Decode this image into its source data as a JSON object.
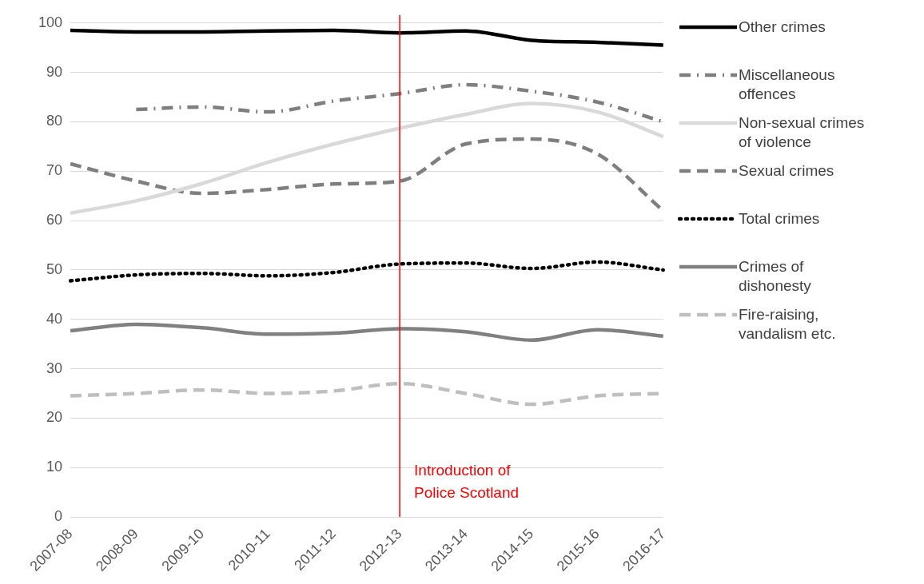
{
  "chart_data": {
    "type": "line",
    "categories": [
      "2007-08",
      "2008-09",
      "2009-10",
      "2010-11",
      "2011-12",
      "2012-13",
      "2013-14",
      "2014-15",
      "2015-16",
      "2016-17"
    ],
    "series": [
      {
        "name": "Other crimes",
        "color": "#000000",
        "line_style": "solid",
        "values": [
          98.5,
          98.2,
          98.2,
          98.4,
          98.5,
          98.0,
          98.4,
          96.5,
          96.1,
          95.5
        ]
      },
      {
        "name": "Miscellaneous offences",
        "color": "#7f7f7f",
        "line_style": "dashdot",
        "values": [
          null,
          82.5,
          83.0,
          82.0,
          84.2,
          85.7,
          87.5,
          86.2,
          84.0,
          80.0
        ]
      },
      {
        "name": "Non-sexual crimes of violence",
        "color": "#d9d9d9",
        "line_style": "solid",
        "values": [
          61.5,
          64.0,
          67.5,
          71.8,
          75.5,
          78.7,
          81.5,
          83.7,
          82.0,
          77.0
        ]
      },
      {
        "name": "Sexual crimes",
        "color": "#7f7f7f",
        "line_style": "dashed",
        "values": [
          71.5,
          68.0,
          65.5,
          66.3,
          67.4,
          68.0,
          75.5,
          76.5,
          73.5,
          62.0
        ]
      },
      {
        "name": "Total crimes",
        "color": "#000000",
        "line_style": "dotted",
        "values": [
          47.8,
          49.0,
          49.3,
          48.8,
          49.5,
          51.2,
          51.4,
          50.3,
          51.6,
          50.0
        ]
      },
      {
        "name": "Crimes of dishonesty",
        "color": "#808080",
        "line_style": "solid",
        "values": [
          37.7,
          39.0,
          38.3,
          37.0,
          37.2,
          38.1,
          37.5,
          35.8,
          37.9,
          36.6
        ]
      },
      {
        "name": "Fire-raising, vandalism etc.",
        "color": "#bfbfbf",
        "line_style": "dashed",
        "values": [
          24.5,
          25.0,
          25.7,
          25.0,
          25.5,
          27.0,
          25.0,
          22.8,
          24.5,
          25.0
        ]
      }
    ],
    "ylim": [
      0,
      100
    ],
    "yticks": [
      0,
      10,
      20,
      30,
      40,
      50,
      60,
      70,
      80,
      90,
      100
    ],
    "grid": "y",
    "legend": "right",
    "ref_lines": [
      {
        "axis": "x",
        "value": "2012-13",
        "label": "Introduction of Police Scotland",
        "color": "#ff0000"
      }
    ]
  }
}
